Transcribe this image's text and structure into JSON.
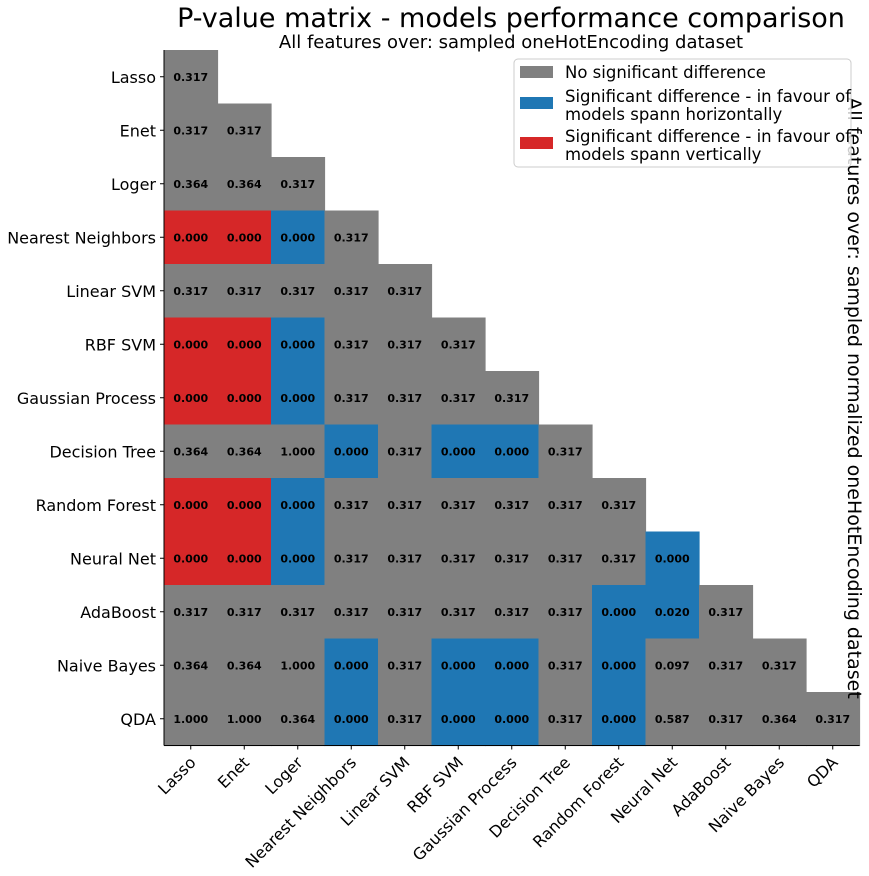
{
  "chart_data": {
    "type": "heatmap",
    "title": "P-value matrix - models performance comparison",
    "subtitle": "All features over: sampled oneHotEncoding dataset",
    "side_label": "All features over: sampled normalized oneHotEncoding dataset",
    "models": [
      "Lasso",
      "Enet",
      "Loger",
      "Nearest Neighbors",
      "Linear SVM",
      "RBF SVM",
      "Gaussian Process",
      "Decision Tree",
      "Random Forest",
      "Neural Net",
      "AdaBoost",
      "Naive Bayes",
      "QDA"
    ],
    "colors": {
      "none": "#808080",
      "horizontal": "#1f77b4",
      "vertical": "#d62728"
    },
    "legend": {
      "placement": "top-right",
      "items": [
        {
          "key": "none",
          "lines": [
            "No significant difference"
          ]
        },
        {
          "key": "horizontal",
          "lines": [
            "Significant difference - in favour of",
            "models spann horizontally"
          ]
        },
        {
          "key": "vertical",
          "lines": [
            "Significant difference - in favour of",
            "models spann vertically"
          ]
        }
      ]
    },
    "rows": [
      {
        "row": "Lasso",
        "values": [
          "0.317"
        ],
        "sig": [
          "none"
        ]
      },
      {
        "row": "Enet",
        "values": [
          "0.317",
          "0.317"
        ],
        "sig": [
          "none",
          "none"
        ]
      },
      {
        "row": "Loger",
        "values": [
          "0.364",
          "0.364",
          "0.317"
        ],
        "sig": [
          "none",
          "none",
          "none"
        ]
      },
      {
        "row": "Nearest Neighbors",
        "values": [
          "0.000",
          "0.000",
          "0.000",
          "0.317"
        ],
        "sig": [
          "vertical",
          "vertical",
          "horizontal",
          "none"
        ]
      },
      {
        "row": "Linear SVM",
        "values": [
          "0.317",
          "0.317",
          "0.317",
          "0.317",
          "0.317"
        ],
        "sig": [
          "none",
          "none",
          "none",
          "none",
          "none"
        ]
      },
      {
        "row": "RBF SVM",
        "values": [
          "0.000",
          "0.000",
          "0.000",
          "0.317",
          "0.317",
          "0.317"
        ],
        "sig": [
          "vertical",
          "vertical",
          "horizontal",
          "none",
          "none",
          "none"
        ]
      },
      {
        "row": "Gaussian Process",
        "values": [
          "0.000",
          "0.000",
          "0.000",
          "0.317",
          "0.317",
          "0.317",
          "0.317"
        ],
        "sig": [
          "vertical",
          "vertical",
          "horizontal",
          "none",
          "none",
          "none",
          "none"
        ]
      },
      {
        "row": "Decision Tree",
        "values": [
          "0.364",
          "0.364",
          "1.000",
          "0.000",
          "0.317",
          "0.000",
          "0.000",
          "0.317"
        ],
        "sig": [
          "none",
          "none",
          "none",
          "horizontal",
          "none",
          "horizontal",
          "horizontal",
          "none"
        ]
      },
      {
        "row": "Random Forest",
        "values": [
          "0.000",
          "0.000",
          "0.000",
          "0.317",
          "0.317",
          "0.317",
          "0.317",
          "0.317",
          "0.317"
        ],
        "sig": [
          "vertical",
          "vertical",
          "horizontal",
          "none",
          "none",
          "none",
          "none",
          "none",
          "none"
        ]
      },
      {
        "row": "Neural Net",
        "values": [
          "0.000",
          "0.000",
          "0.000",
          "0.317",
          "0.317",
          "0.317",
          "0.317",
          "0.317",
          "0.317",
          "0.000"
        ],
        "sig": [
          "vertical",
          "vertical",
          "horizontal",
          "none",
          "none",
          "none",
          "none",
          "none",
          "none",
          "horizontal"
        ]
      },
      {
        "row": "AdaBoost",
        "values": [
          "0.317",
          "0.317",
          "0.317",
          "0.317",
          "0.317",
          "0.317",
          "0.317",
          "0.317",
          "0.000",
          "0.020",
          "0.317"
        ],
        "sig": [
          "none",
          "none",
          "none",
          "none",
          "none",
          "none",
          "none",
          "none",
          "horizontal",
          "horizontal",
          "none"
        ]
      },
      {
        "row": "Naive Bayes",
        "values": [
          "0.364",
          "0.364",
          "1.000",
          "0.000",
          "0.317",
          "0.000",
          "0.000",
          "0.317",
          "0.000",
          "0.097",
          "0.317",
          "0.317"
        ],
        "sig": [
          "none",
          "none",
          "none",
          "horizontal",
          "none",
          "horizontal",
          "horizontal",
          "none",
          "horizontal",
          "none",
          "none",
          "none"
        ]
      },
      {
        "row": "QDA",
        "values": [
          "1.000",
          "1.000",
          "0.364",
          "0.000",
          "0.317",
          "0.000",
          "0.000",
          "0.317",
          "0.000",
          "0.587",
          "0.317",
          "0.364",
          "0.317"
        ],
        "sig": [
          "none",
          "none",
          "none",
          "horizontal",
          "none",
          "horizontal",
          "horizontal",
          "none",
          "horizontal",
          "none",
          "none",
          "none",
          "none"
        ]
      }
    ]
  }
}
